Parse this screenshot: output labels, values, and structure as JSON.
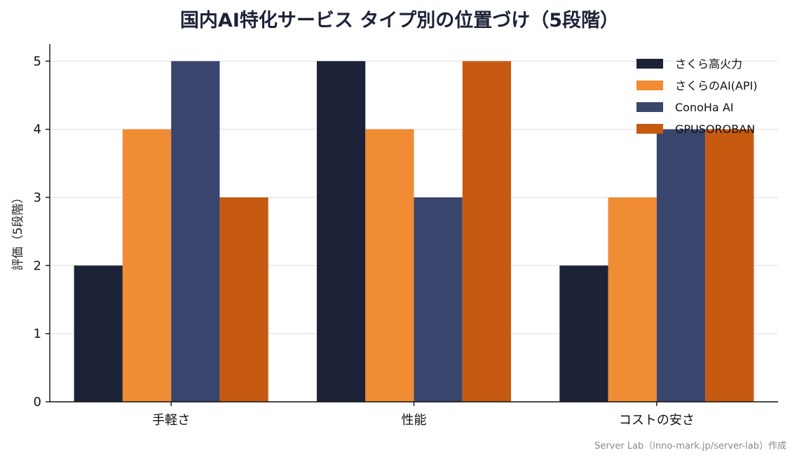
{
  "chart_data": {
    "type": "bar",
    "title": "国内AI特化サービス タイプ別の位置づけ（5段階）",
    "xlabel": "",
    "ylabel": "評価（5段階）",
    "categories": [
      "手軽さ",
      "性能",
      "コストの安さ"
    ],
    "series": [
      {
        "name": "さくら高火力",
        "color": "#1c2238",
        "values": [
          2,
          5,
          2
        ]
      },
      {
        "name": "さくらのAI(API)",
        "color": "#f08c33",
        "values": [
          4,
          4,
          3
        ]
      },
      {
        "name": "ConoHa AI",
        "color": "#3a456d",
        "values": [
          5,
          3,
          4
        ]
      },
      {
        "name": "GPUSOROBAN",
        "color": "#c65a11",
        "values": [
          3,
          5,
          4
        ]
      }
    ],
    "ylim": [
      0,
      5.25
    ],
    "yticks": [
      "0",
      "1",
      "2",
      "3",
      "4",
      "5"
    ],
    "grid": true,
    "legend_position": "top-right"
  },
  "credit": "Server Lab（inno-mark.jp/server-lab）作成"
}
